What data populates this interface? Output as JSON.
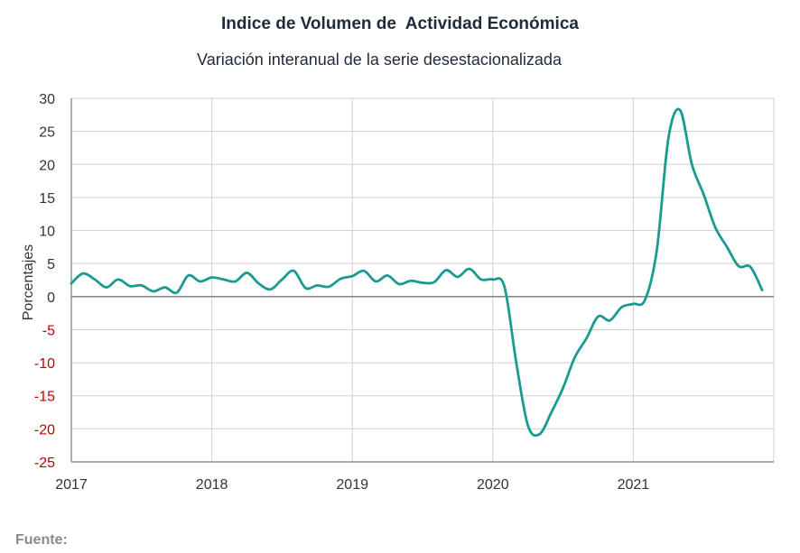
{
  "chart_data": {
    "type": "line",
    "title": "Indice de Volumen de  Actividad Económica",
    "subtitle": "Variación interanual de la serie desestacionalizada",
    "xlabel": "",
    "ylabel": "Porcentajes",
    "xlim": [
      2017.0,
      2022.0
    ],
    "ylim": [
      -25,
      30
    ],
    "y_ticks": [
      "30",
      "25",
      "20",
      "15",
      "10",
      "5",
      "0",
      "-5",
      "-10",
      "-15",
      "-20",
      "-25"
    ],
    "x_ticks": [
      "2017",
      "2018",
      "2019",
      "2020",
      "2021"
    ],
    "grid": true,
    "zero_line": true,
    "colors": {
      "line": "#1a9b91",
      "negative_tick": "#c00000",
      "positive_tick": "#333333",
      "grid": "#d0d0d0"
    },
    "series": [
      {
        "x": [
          2017.0,
          2017.083,
          2017.167,
          2017.25,
          2017.333,
          2017.417,
          2017.5,
          2017.583,
          2017.667,
          2017.75,
          2017.833,
          2017.917,
          2018.0,
          2018.083,
          2018.167,
          2018.25,
          2018.333,
          2018.417,
          2018.5,
          2018.583,
          2018.667,
          2018.75,
          2018.833,
          2018.917,
          2019.0,
          2019.083,
          2019.167,
          2019.25,
          2019.333,
          2019.417,
          2019.5,
          2019.583,
          2019.667,
          2019.75,
          2019.833,
          2019.917,
          2020.0,
          2020.083,
          2020.167,
          2020.25,
          2020.333,
          2020.417,
          2020.5,
          2020.583,
          2020.667,
          2020.75,
          2020.833,
          2020.917,
          2021.0,
          2021.083,
          2021.167,
          2021.25,
          2021.333,
          2021.417,
          2021.5,
          2021.583,
          2021.667,
          2021.75,
          2021.833,
          2021.917
        ],
        "values": [
          2.0,
          3.5,
          2.6,
          1.4,
          2.6,
          1.6,
          1.7,
          0.8,
          1.4,
          0.6,
          3.2,
          2.3,
          2.9,
          2.6,
          2.3,
          3.6,
          2.0,
          1.1,
          2.6,
          3.9,
          1.3,
          1.7,
          1.5,
          2.7,
          3.1,
          3.9,
          2.3,
          3.2,
          1.9,
          2.4,
          2.1,
          2.2,
          4.0,
          3.0,
          4.2,
          2.6,
          2.6,
          1.5,
          -10.0,
          -19.5,
          -20.8,
          -17.5,
          -13.8,
          -9.2,
          -6.3,
          -3.0,
          -3.6,
          -1.6,
          -1.1,
          -0.5,
          7.0,
          24.0,
          28.2,
          20.0,
          15.5,
          10.5,
          7.5,
          4.6,
          4.5,
          1.0
        ]
      }
    ]
  },
  "footer": {
    "source_label": "Fuente:"
  }
}
